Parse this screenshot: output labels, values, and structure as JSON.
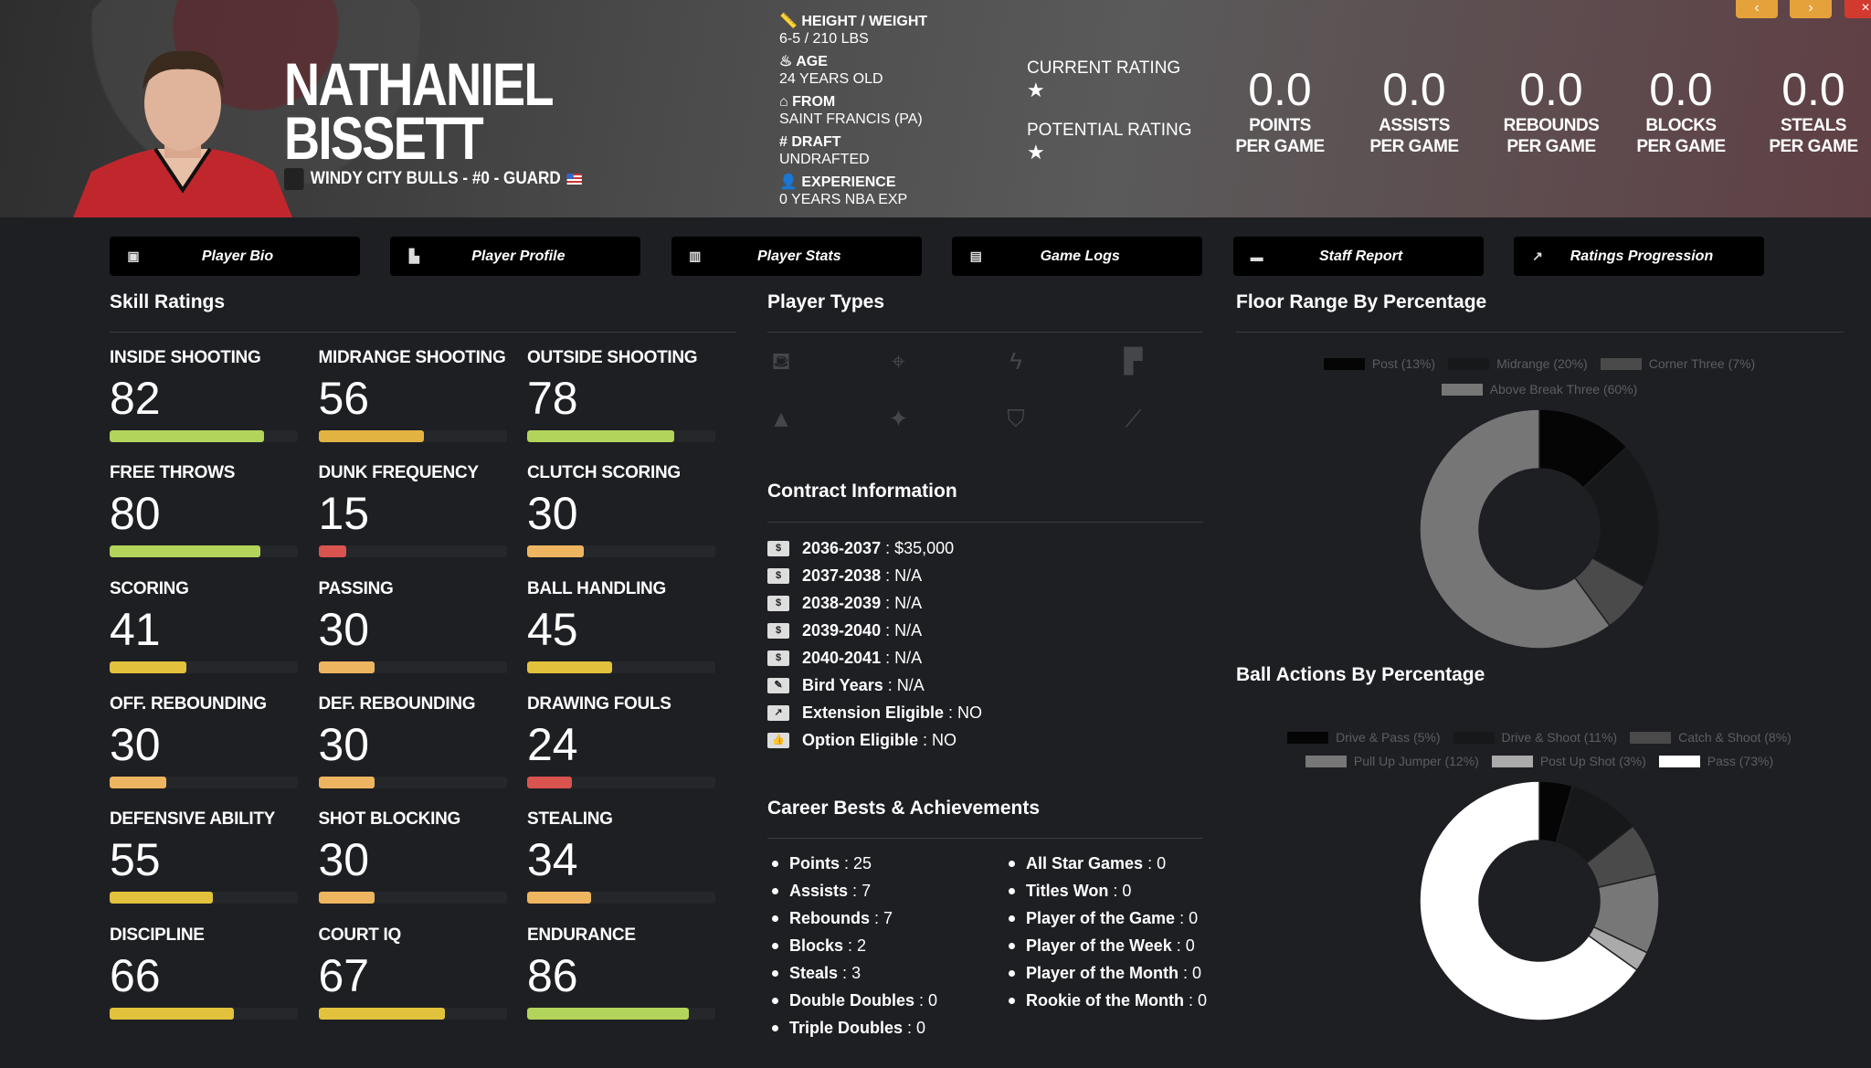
{
  "player": {
    "first_name": "NATHANIEL",
    "last_name": "BISSETT",
    "team_line": "WINDY CITY BULLS - #0 - GUARD"
  },
  "info": [
    {
      "icon": "ruler-icon",
      "label": "HEIGHT / WEIGHT",
      "value": "6-5 / 210 LBS"
    },
    {
      "icon": "birthday-cake-icon",
      "label": "AGE",
      "value": "24 YEARS OLD"
    },
    {
      "icon": "school-icon",
      "label": "FROM",
      "value": "SAINT FRANCIS (PA)"
    },
    {
      "icon": "hashtag-icon",
      "label": "DRAFT",
      "value": "UNDRAFTED"
    },
    {
      "icon": "user-clock-icon",
      "label": "EXPERIENCE",
      "value": "0 YEARS NBA EXP"
    }
  ],
  "ratings": {
    "current_label": "CURRENT RATING",
    "current_stars": 1,
    "potential_label": "POTENTIAL RATING",
    "potential_stars": 1
  },
  "stats": [
    {
      "value": "0.0",
      "l1": "POINTS",
      "l2": "PER GAME"
    },
    {
      "value": "0.0",
      "l1": "ASSISTS",
      "l2": "PER GAME"
    },
    {
      "value": "0.0",
      "l1": "REBOUNDS",
      "l2": "PER GAME"
    },
    {
      "value": "0.0",
      "l1": "BLOCKS",
      "l2": "PER GAME"
    },
    {
      "value": "0.0",
      "l1": "STEALS",
      "l2": "PER GAME"
    }
  ],
  "window_buttons": {
    "prev": "‹",
    "next": "›",
    "close": "×"
  },
  "nav": [
    {
      "label": "Player Bio",
      "icon": "id-card-icon"
    },
    {
      "label": "Player Profile",
      "icon": "reader-icon"
    },
    {
      "label": "Player Stats",
      "icon": "bar-chart-icon"
    },
    {
      "label": "Game Logs",
      "icon": "clipboard-icon"
    },
    {
      "label": "Staff Report",
      "icon": "comment-icon"
    },
    {
      "label": "Ratings Progression",
      "icon": "line-chart-icon"
    }
  ],
  "skills_title": "Skill Ratings",
  "skills": [
    {
      "label": "INSIDE SHOOTING",
      "value": 82
    },
    {
      "label": "MIDRANGE SHOOTING",
      "value": 56
    },
    {
      "label": "OUTSIDE SHOOTING",
      "value": 78
    },
    {
      "label": "FREE THROWS",
      "value": 80
    },
    {
      "label": "DUNK FREQUENCY",
      "value": 15
    },
    {
      "label": "CLUTCH SCORING",
      "value": 30
    },
    {
      "label": "SCORING",
      "value": 41
    },
    {
      "label": "PASSING",
      "value": 30
    },
    {
      "label": "BALL HANDLING",
      "value": 45
    },
    {
      "label": "OFF. REBOUNDING",
      "value": 30
    },
    {
      "label": "DEF. REBOUNDING",
      "value": 30
    },
    {
      "label": "DRAWING FOULS",
      "value": 24
    },
    {
      "label": "DEFENSIVE ABILITY",
      "value": 55
    },
    {
      "label": "SHOT BLOCKING",
      "value": 30
    },
    {
      "label": "STEALING",
      "value": 34
    },
    {
      "label": "DISCIPLINE",
      "value": 66
    },
    {
      "label": "COURT IQ",
      "value": 67
    },
    {
      "label": "ENDURANCE",
      "value": 86
    }
  ],
  "player_types_title": "Player Types",
  "player_types": [
    "paint-bucket-icon",
    "crosshairs-icon",
    "bolt-icon",
    "paint-roller-icon",
    "wizard-hat-icon",
    "magic-wand-icon",
    "shield-icon",
    "broom-icon"
  ],
  "contract_title": "Contract Information",
  "contract": [
    {
      "icon": "money-bill-icon",
      "label": "2036-2037",
      "value": "$35,000"
    },
    {
      "icon": "money-bill-icon",
      "label": "2037-2038",
      "value": "N/A"
    },
    {
      "icon": "money-bill-icon",
      "label": "2038-2039",
      "value": "N/A"
    },
    {
      "icon": "money-bill-icon",
      "label": "2039-2040",
      "value": "N/A"
    },
    {
      "icon": "money-bill-icon",
      "label": "2040-2041",
      "value": "N/A"
    },
    {
      "icon": "feather-icon",
      "label": "Bird Years",
      "value": "N/A"
    },
    {
      "icon": "external-link-icon",
      "label": "Extension Eligible",
      "value": "NO"
    },
    {
      "icon": "thumbs-up-icon",
      "label": "Option Eligible",
      "value": "NO"
    }
  ],
  "career_title": "Career Bests & Achievements",
  "career_left": [
    {
      "label": "Points",
      "value": "25"
    },
    {
      "label": "Assists",
      "value": "7"
    },
    {
      "label": "Rebounds",
      "value": "7"
    },
    {
      "label": "Blocks",
      "value": "2"
    },
    {
      "label": "Steals",
      "value": "3"
    },
    {
      "label": "Double Doubles",
      "value": "0"
    },
    {
      "label": "Triple Doubles",
      "value": "0"
    }
  ],
  "career_right": [
    {
      "label": "All Star Games",
      "value": "0"
    },
    {
      "label": "Titles Won",
      "value": "0"
    },
    {
      "label": "Player of the Game",
      "value": "0"
    },
    {
      "label": "Player of the Week",
      "value": "0"
    },
    {
      "label": "Player of the Month",
      "value": "0"
    },
    {
      "label": "Rookie of the Month",
      "value": "0"
    }
  ],
  "chart_data": [
    {
      "type": "pie",
      "title": "Floor Range By Percentage",
      "legend": "top",
      "donut": true,
      "categories": [
        "Post (13%)",
        "Midrange (20%)",
        "Corner Three (7%)",
        "Above Break Three (60%)"
      ],
      "values": [
        13,
        20,
        7,
        60
      ],
      "colors": [
        "#050505",
        "#17181a",
        "#4a4a4a",
        "#767676"
      ]
    },
    {
      "type": "pie",
      "title": "Ball Actions By Percentage",
      "legend": "top",
      "donut": true,
      "categories": [
        "Drive & Pass (5%)",
        "Drive & Shoot (11%)",
        "Catch & Shoot (8%)",
        "Pull Up Jumper (12%)",
        "Post Up Shot (3%)",
        "Pass (73%)"
      ],
      "values": [
        5,
        11,
        8,
        12,
        3,
        73
      ],
      "colors": [
        "#050505",
        "#17181a",
        "#4a4a4a",
        "#777777",
        "#aaaaaa",
        "#ffffff"
      ]
    }
  ]
}
